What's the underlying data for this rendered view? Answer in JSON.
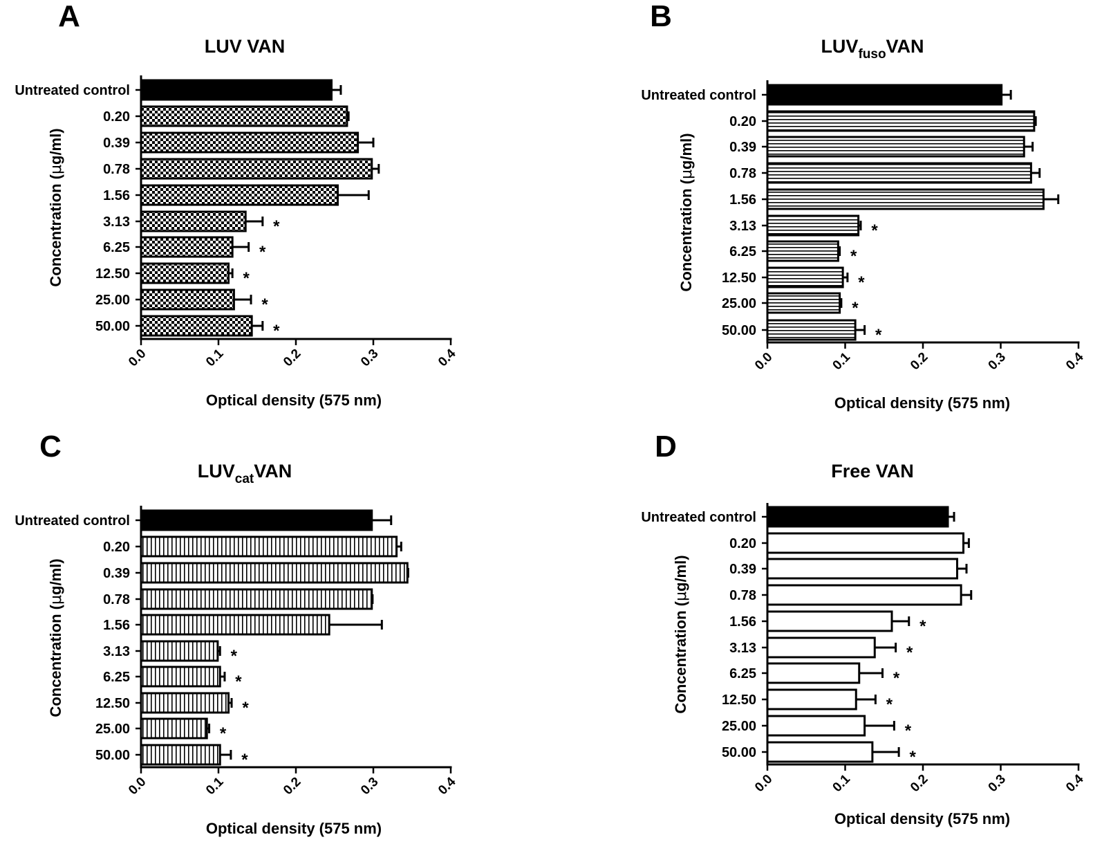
{
  "chart_data": [
    {
      "panel": "A",
      "type": "bar",
      "orientation": "horizontal",
      "title": "LUV VAN",
      "title_main": "LUV",
      "title_sub": "",
      "title_tail": " VAN",
      "pattern": "checker",
      "xlabel": "Optical density (575 nm)",
      "ylabel": "Concentration (",
      "ylabel_mu": "μ",
      "ylabel_tail": "g/ml)",
      "xlim": [
        0,
        0.4
      ],
      "xticks": [
        "0.0",
        "0.1",
        "0.2",
        "0.3",
        "0.4"
      ],
      "categories": [
        "Untreated control",
        "0.20",
        "0.39",
        "0.78",
        "1.56",
        "3.13",
        "6.25",
        "12.50",
        "25.00",
        "50.00"
      ],
      "values": [
        0.246,
        0.266,
        0.28,
        0.298,
        0.254,
        0.135,
        0.118,
        0.113,
        0.12,
        0.143
      ],
      "errors": [
        0.012,
        0.002,
        0.02,
        0.009,
        0.04,
        0.022,
        0.021,
        0.005,
        0.022,
        0.014
      ],
      "significant": [
        "",
        "",
        "",
        "",
        "",
        "*",
        "*",
        "*",
        "*",
        "*"
      ]
    },
    {
      "panel": "B",
      "type": "bar",
      "orientation": "horizontal",
      "title": "LUVfusoVAN",
      "title_main": "LUV",
      "title_sub": "fuso",
      "title_tail": "VAN",
      "pattern": "horizontal-lines",
      "xlabel": "Optical density (575 nm)",
      "ylabel": "Concentration (",
      "ylabel_mu": "μ",
      "ylabel_tail": "g/ml)",
      "xlim": [
        0,
        0.4
      ],
      "xticks": [
        "0.0",
        "0.1",
        "0.2",
        "0.3",
        "0.4"
      ],
      "categories": [
        "Untreated control",
        "0.20",
        "0.39",
        "0.78",
        "1.56",
        "3.13",
        "6.25",
        "12.50",
        "25.00",
        "50.00"
      ],
      "values": [
        0.301,
        0.343,
        0.33,
        0.339,
        0.355,
        0.117,
        0.091,
        0.097,
        0.093,
        0.113
      ],
      "errors": [
        0.012,
        0.002,
        0.011,
        0.011,
        0.019,
        0.003,
        0.002,
        0.006,
        0.002,
        0.012
      ],
      "significant": [
        "",
        "",
        "",
        "",
        "",
        "*",
        "*",
        "*",
        "*",
        "*"
      ]
    },
    {
      "panel": "C",
      "type": "bar",
      "orientation": "horizontal",
      "title": "LUVcatVAN",
      "title_main": "LUV",
      "title_sub": "cat",
      "title_tail": "VAN",
      "pattern": "vertical-lines",
      "xlabel": "Optical density (575 nm)",
      "ylabel": "Concentration (",
      "ylabel_mu": "μ",
      "ylabel_tail": "g/ml)",
      "xlim": [
        0,
        0.4
      ],
      "xticks": [
        "0.0",
        "0.1",
        "0.2",
        "0.3",
        "0.4"
      ],
      "categories": [
        "Untreated control",
        "0.20",
        "0.39",
        "0.78",
        "1.56",
        "3.13",
        "6.25",
        "12.50",
        "25.00",
        "50.00"
      ],
      "values": [
        0.298,
        0.33,
        0.344,
        0.298,
        0.243,
        0.099,
        0.102,
        0.113,
        0.085,
        0.102
      ],
      "errors": [
        0.025,
        0.006,
        0.001,
        0.001,
        0.068,
        0.003,
        0.006,
        0.004,
        0.003,
        0.014
      ],
      "significant": [
        "",
        "",
        "",
        "",
        "",
        "*",
        "*",
        "*",
        "*",
        "*"
      ]
    },
    {
      "panel": "D",
      "type": "bar",
      "orientation": "horizontal",
      "title": "Free VAN",
      "title_main": "Free VAN",
      "title_sub": "",
      "title_tail": "",
      "pattern": "white",
      "xlabel": "Optical density (575 nm)",
      "ylabel": "Concentration (",
      "ylabel_mu": "μ",
      "ylabel_tail": "g/ml)",
      "xlim": [
        0,
        0.4
      ],
      "xticks": [
        "0.0",
        "0.1",
        "0.2",
        "0.3",
        "0.4"
      ],
      "categories": [
        "Untreated control",
        "0.20",
        "0.39",
        "0.78",
        "1.56",
        "3.13",
        "6.25",
        "12.50",
        "25.00",
        "50.00"
      ],
      "values": [
        0.232,
        0.252,
        0.244,
        0.249,
        0.16,
        0.138,
        0.118,
        0.114,
        0.125,
        0.135
      ],
      "errors": [
        0.008,
        0.007,
        0.012,
        0.013,
        0.022,
        0.027,
        0.03,
        0.025,
        0.038,
        0.034
      ],
      "significant": [
        "",
        "",
        "",
        "",
        "*",
        "*",
        "*",
        "*",
        "*",
        "*"
      ]
    }
  ]
}
